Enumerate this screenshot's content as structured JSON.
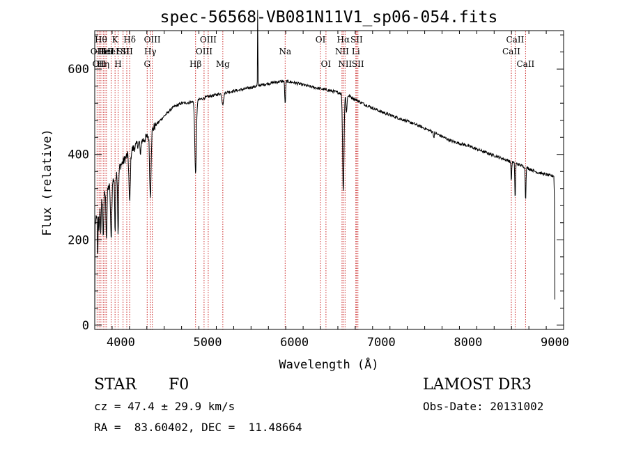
{
  "chart_data": {
    "type": "line",
    "title": "spec-56568-VB081N11V1_sp06-054.fits",
    "xlabel": "Wavelength (Å)",
    "ylabel": "Flux (relative)",
    "xlim": [
      3700,
      9100
    ],
    "ylim": [
      -10,
      690
    ],
    "xticks": [
      4000,
      5000,
      6000,
      7000,
      8000,
      9000
    ],
    "xtick_labels": [
      "4000",
      "5000",
      "6000",
      "7000",
      "8000",
      "9000"
    ],
    "yticks": [
      0,
      200,
      400,
      600
    ],
    "ytick_labels": [
      "0",
      "200",
      "400",
      "600"
    ],
    "grid": false,
    "series": [
      {
        "name": "spectrum",
        "continuum": [
          [
            3700,
            235
          ],
          [
            3800,
            305
          ],
          [
            3900,
            335
          ],
          [
            4000,
            375
          ],
          [
            4100,
            405
          ],
          [
            4200,
            425
          ],
          [
            4300,
            440
          ],
          [
            4400,
            468
          ],
          [
            4500,
            490
          ],
          [
            4600,
            510
          ],
          [
            4700,
            520
          ],
          [
            4800,
            522
          ],
          [
            4900,
            528
          ],
          [
            5000,
            535
          ],
          [
            5200,
            545
          ],
          [
            5400,
            552
          ],
          [
            5600,
            562
          ],
          [
            5800,
            570
          ],
          [
            5900,
            572
          ],
          [
            6000,
            568
          ],
          [
            6200,
            558
          ],
          [
            6400,
            550
          ],
          [
            6600,
            540
          ],
          [
            6800,
            518
          ],
          [
            7000,
            500
          ],
          [
            7200,
            485
          ],
          [
            7400,
            470
          ],
          [
            7600,
            452
          ],
          [
            7800,
            432
          ],
          [
            8000,
            420
          ],
          [
            8200,
            405
          ],
          [
            8400,
            390
          ],
          [
            8600,
            375
          ],
          [
            8800,
            358
          ],
          [
            8950,
            350
          ]
        ],
        "absorption_features": [
          [
            3734,
            120,
            3
          ],
          [
            3750,
            50,
            4
          ],
          [
            3770,
            70,
            4
          ],
          [
            3798,
            95,
            5
          ],
          [
            3835,
            110,
            6
          ],
          [
            3889,
            130,
            7
          ],
          [
            3934,
            145,
            4
          ],
          [
            3969,
            150,
            5
          ],
          [
            4102,
            120,
            8
          ],
          [
            4227,
            40,
            4
          ],
          [
            4340,
            150,
            8
          ],
          [
            4861,
            170,
            9
          ],
          [
            5175,
            25,
            10
          ],
          [
            5893,
            55,
            5
          ],
          [
            6563,
            230,
            8
          ],
          [
            6600,
            40,
            6
          ],
          [
            7605,
            12,
            4
          ],
          [
            8498,
            45,
            4
          ],
          [
            8542,
            85,
            4
          ],
          [
            8662,
            80,
            4
          ]
        ],
        "emission_spikes": [
          [
            5577,
            200,
            2
          ]
        ]
      }
    ],
    "line_markers": [
      {
        "wavelength": 3727,
        "label": "OII",
        "row": 1
      },
      {
        "wavelength": 3750,
        "label": "OII",
        "row": 2
      },
      {
        "wavelength": 3771,
        "label": "Hθ",
        "row": 0
      },
      {
        "wavelength": 3798,
        "label": "Hη",
        "row": 2
      },
      {
        "wavelength": 3819,
        "label": "HeI",
        "row": 1
      },
      {
        "wavelength": 3835,
        "label": "HeI",
        "row": 1
      },
      {
        "wavelength": 3889,
        "label": "HeI",
        "row": 1
      },
      {
        "wavelength": 3934,
        "label": "K",
        "row": 0
      },
      {
        "wavelength": 3969,
        "label": "H",
        "row": 2
      },
      {
        "wavelength": 4026,
        "label": "SII",
        "row": 1
      },
      {
        "wavelength": 4102,
        "label": "Hδ",
        "row": 0
      },
      {
        "wavelength": 4069,
        "label": "SII",
        "row": 1
      },
      {
        "wavelength": 4304,
        "label": "G",
        "row": 2
      },
      {
        "wavelength": 4340,
        "label": "Hγ",
        "row": 1
      },
      {
        "wavelength": 4363,
        "label": "OIII",
        "row": 0
      },
      {
        "wavelength": 4861,
        "label": "Hβ",
        "row": 2
      },
      {
        "wavelength": 4959,
        "label": "OIII",
        "row": 1
      },
      {
        "wavelength": 5007,
        "label": "OIII",
        "row": 0
      },
      {
        "wavelength": 5175,
        "label": "Mg",
        "row": 2
      },
      {
        "wavelength": 5893,
        "label": "Na",
        "row": 1
      },
      {
        "wavelength": 6300,
        "label": "OI",
        "row": 0
      },
      {
        "wavelength": 6363,
        "label": "OI",
        "row": 2
      },
      {
        "wavelength": 6548,
        "label": "NII",
        "row": 1
      },
      {
        "wavelength": 6563,
        "label": "Hα",
        "row": 0
      },
      {
        "wavelength": 6583,
        "label": "NII",
        "row": 2
      },
      {
        "wavelength": 6707,
        "label": "Li",
        "row": 1
      },
      {
        "wavelength": 6716,
        "label": "SII",
        "row": 0
      },
      {
        "wavelength": 6731,
        "label": "SII",
        "row": 2
      },
      {
        "wavelength": 8498,
        "label": "CaII",
        "row": 1
      },
      {
        "wavelength": 8542,
        "label": "CaII",
        "row": 0
      },
      {
        "wavelength": 8662,
        "label": "CaII",
        "row": 2
      }
    ]
  },
  "info": {
    "object_class": "STAR",
    "subclass": "F0",
    "survey": "LAMOST DR3",
    "velocity": "cz = 47.4 ± 29.9 km/s",
    "obs_date": "Obs-Date: 20131002",
    "coords": "RA =  83.60402, DEC =  11.48664"
  },
  "colors": {
    "spectrum": "#000000",
    "marker_line": "#cc2a2a",
    "axis": "#000000"
  }
}
